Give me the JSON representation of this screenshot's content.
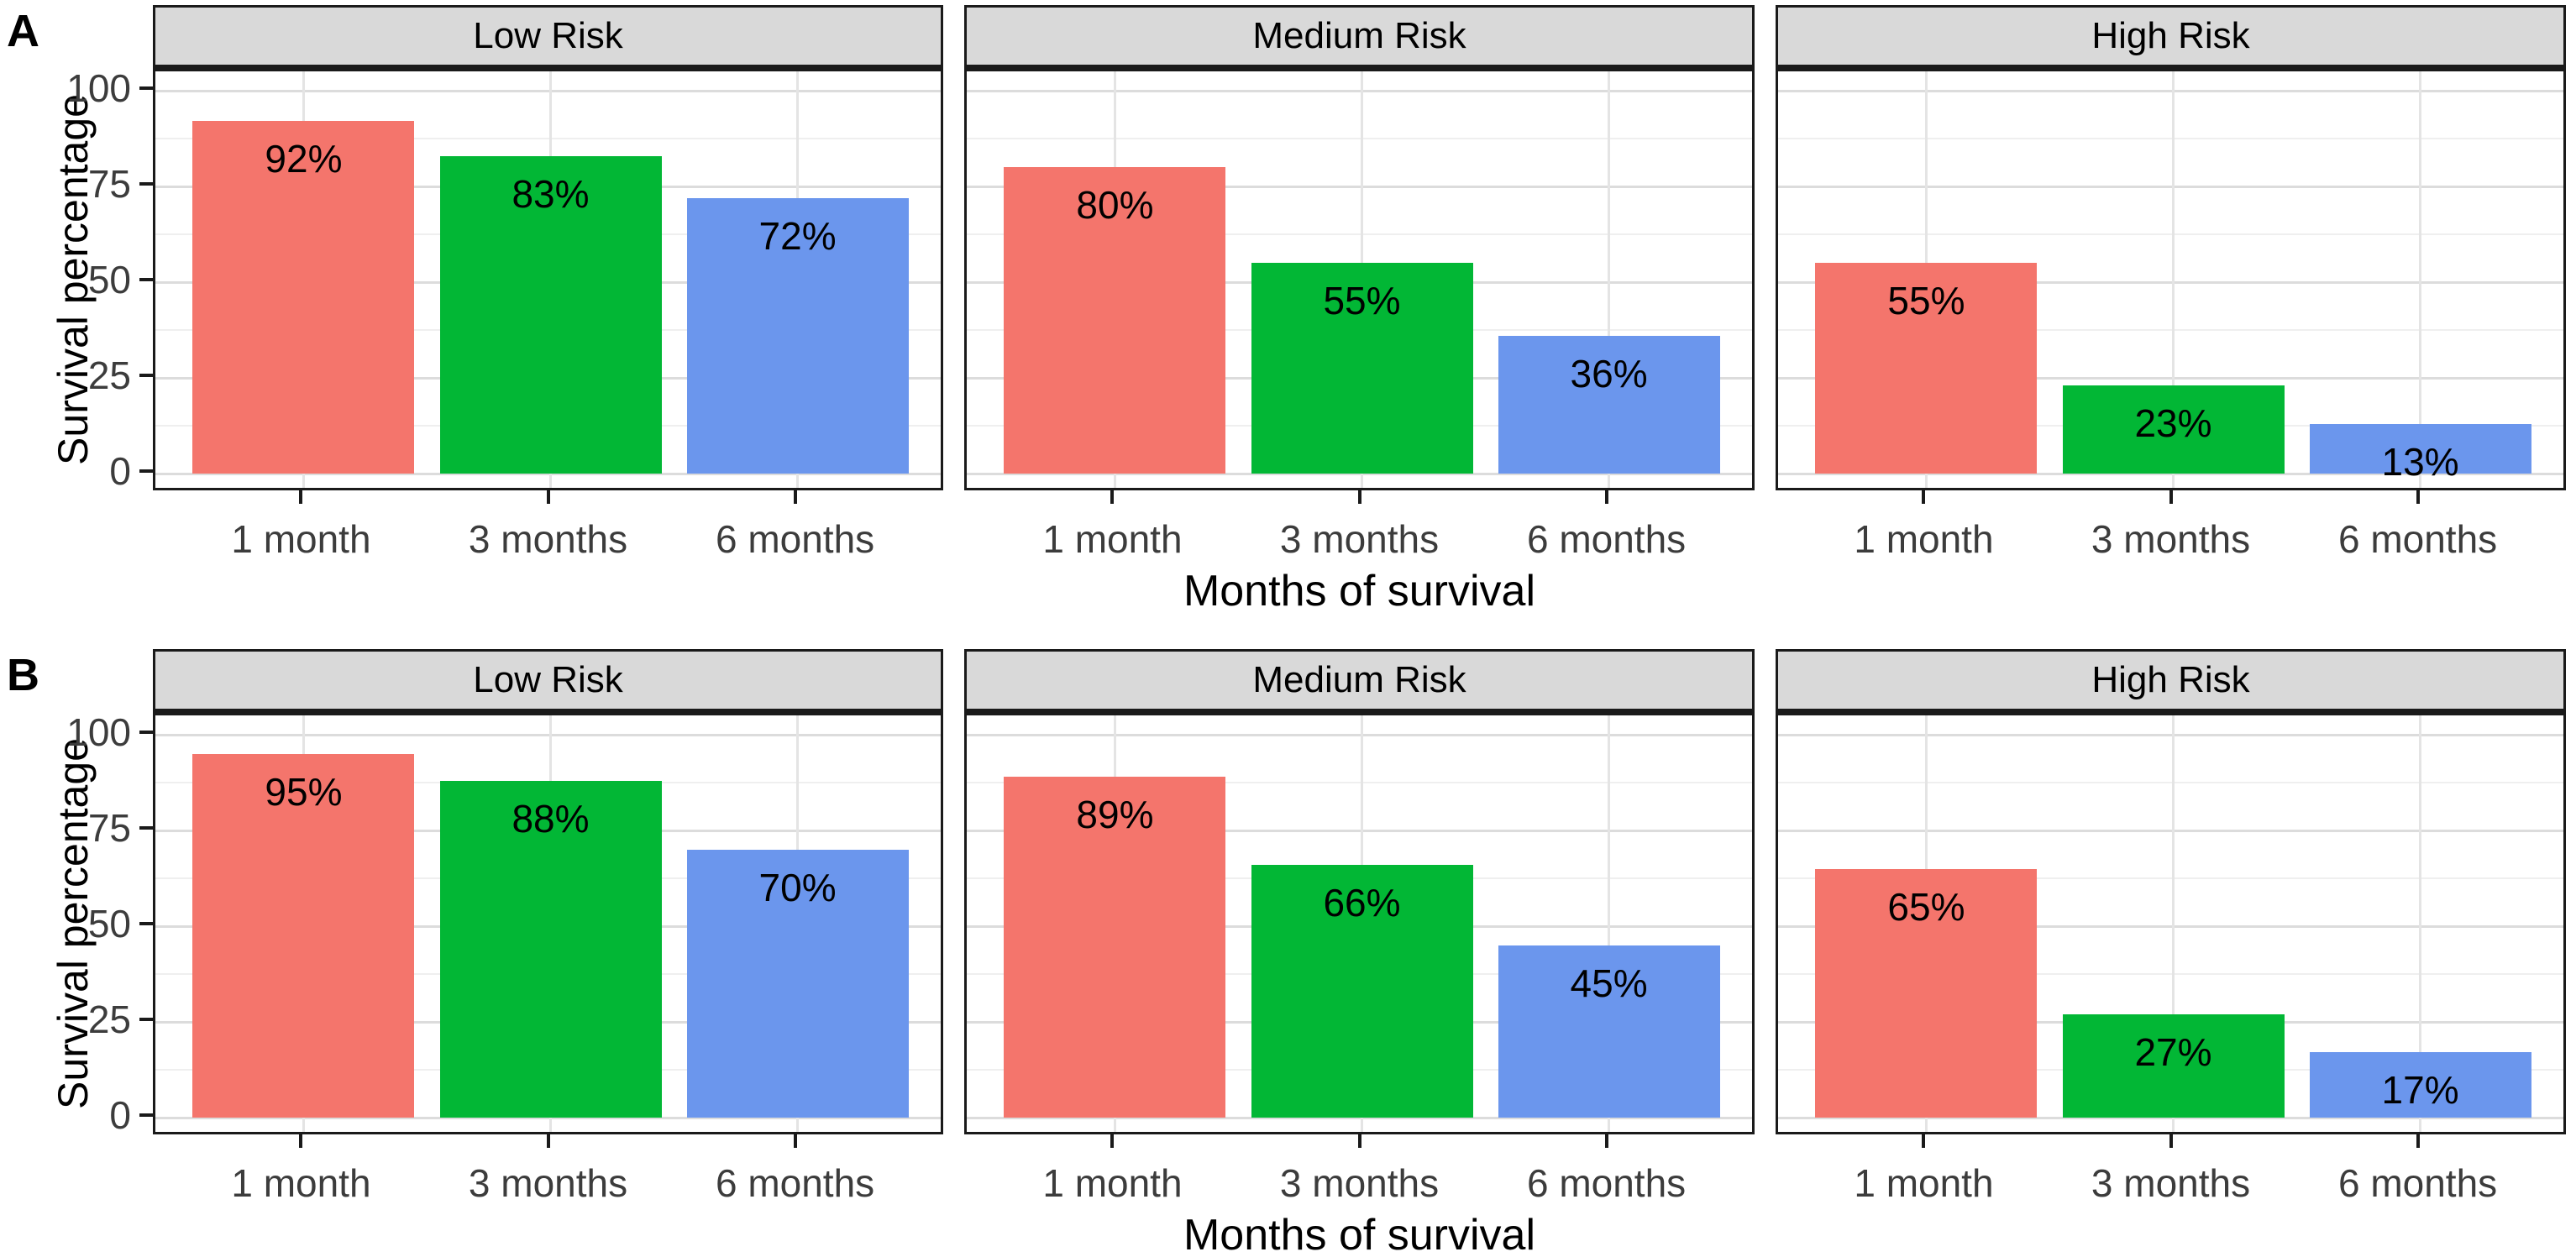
{
  "figure": {
    "y_axis_title": "Survival percentage",
    "x_axis_title": "Months of survival",
    "y_tick_labels": [
      "100",
      "75",
      "50",
      "25",
      "0"
    ],
    "categories": [
      "1 month",
      "3 months",
      "6 months"
    ],
    "facet_titles": [
      "Low Risk",
      "Medium Risk",
      "High Risk"
    ],
    "colors": {
      "bar_1_month": "#F4756C",
      "bar_3_months": "#02B735",
      "bar_6_months": "#6B96ED",
      "strip_background": "#D9D9D9",
      "panel_border": "#1A1A1A",
      "grid_major": "#DCDCDC",
      "grid_minor": "#EFEFEF",
      "axis_text": "#3C3C3C",
      "label_text": "#000000"
    }
  },
  "chart_data": [
    {
      "type": "bar",
      "panel_label": "A",
      "xlabel": "Months of survival",
      "ylabel": "Survival percentage",
      "categories": [
        "1 month",
        "3 months",
        "6 months"
      ],
      "facets": [
        "Low Risk",
        "Medium Risk",
        "High Risk"
      ],
      "series": [
        {
          "facet": "Low Risk",
          "values": [
            92,
            83,
            72
          ],
          "labels": [
            "92%",
            "83%",
            "72%"
          ]
        },
        {
          "facet": "Medium Risk",
          "values": [
            80,
            55,
            36
          ],
          "labels": [
            "80%",
            "55%",
            "36%"
          ]
        },
        {
          "facet": "High Risk",
          "values": [
            55,
            23,
            13
          ],
          "labels": [
            "55%",
            "23%",
            "13%"
          ]
        }
      ],
      "ylim": [
        0,
        100
      ],
      "yticks": [
        0,
        25,
        50,
        75,
        100
      ],
      "yticks_minor": [
        12.5,
        37.5,
        62.5,
        87.5
      ],
      "bar_colors": [
        "#F4756C",
        "#02B735",
        "#6B96ED"
      ],
      "grid": true,
      "legend": false
    },
    {
      "type": "bar",
      "panel_label": "B",
      "xlabel": "Months of survival",
      "ylabel": "Survival percentage",
      "categories": [
        "1 month",
        "3 months",
        "6 months"
      ],
      "facets": [
        "Low Risk",
        "Medium Risk",
        "High Risk"
      ],
      "series": [
        {
          "facet": "Low Risk",
          "values": [
            95,
            88,
            70
          ],
          "labels": [
            "95%",
            "88%",
            "70%"
          ]
        },
        {
          "facet": "Medium Risk",
          "values": [
            89,
            66,
            45
          ],
          "labels": [
            "89%",
            "66%",
            "45%"
          ]
        },
        {
          "facet": "High Risk",
          "values": [
            65,
            27,
            17
          ],
          "labels": [
            "65%",
            "27%",
            "17%"
          ]
        }
      ],
      "ylim": [
        0,
        100
      ],
      "yticks": [
        0,
        25,
        50,
        75,
        100
      ],
      "yticks_minor": [
        12.5,
        37.5,
        62.5,
        87.5
      ],
      "bar_colors": [
        "#F4756C",
        "#02B735",
        "#6B96ED"
      ],
      "grid": true,
      "legend": false
    }
  ]
}
